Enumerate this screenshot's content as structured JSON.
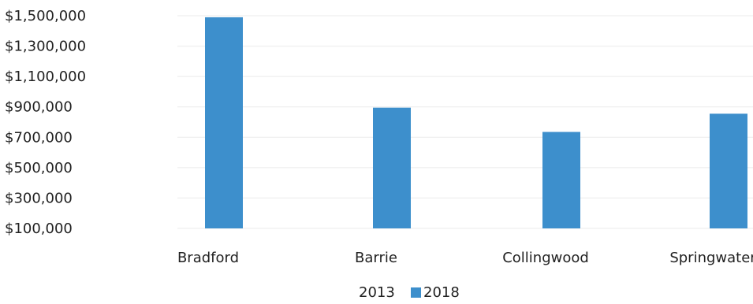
{
  "chart_data": {
    "type": "bar",
    "categories": [
      "Bradford",
      "Barrie",
      "Collingwood",
      "Springwater"
    ],
    "series": [
      {
        "name": "2013",
        "values": [
          null,
          null,
          null,
          null
        ],
        "color": "#ffffff"
      },
      {
        "name": "2018",
        "values": [
          1490000,
          895000,
          735000,
          855000
        ],
        "color": "#3d8fcc"
      }
    ],
    "ylim": [
      100000,
      1500000
    ],
    "yticks": [
      100000,
      300000,
      500000,
      700000,
      900000,
      1100000,
      1300000,
      1500000
    ],
    "ytick_labels": [
      "$100,000",
      "$300,000",
      "$500,000",
      "$700,000",
      "$900,000",
      "$1,100,000",
      "$1,300,000",
      "$1,500,000"
    ],
    "grid": true,
    "legend_position": "bottom",
    "title": "",
    "xlabel": "",
    "ylabel": ""
  }
}
